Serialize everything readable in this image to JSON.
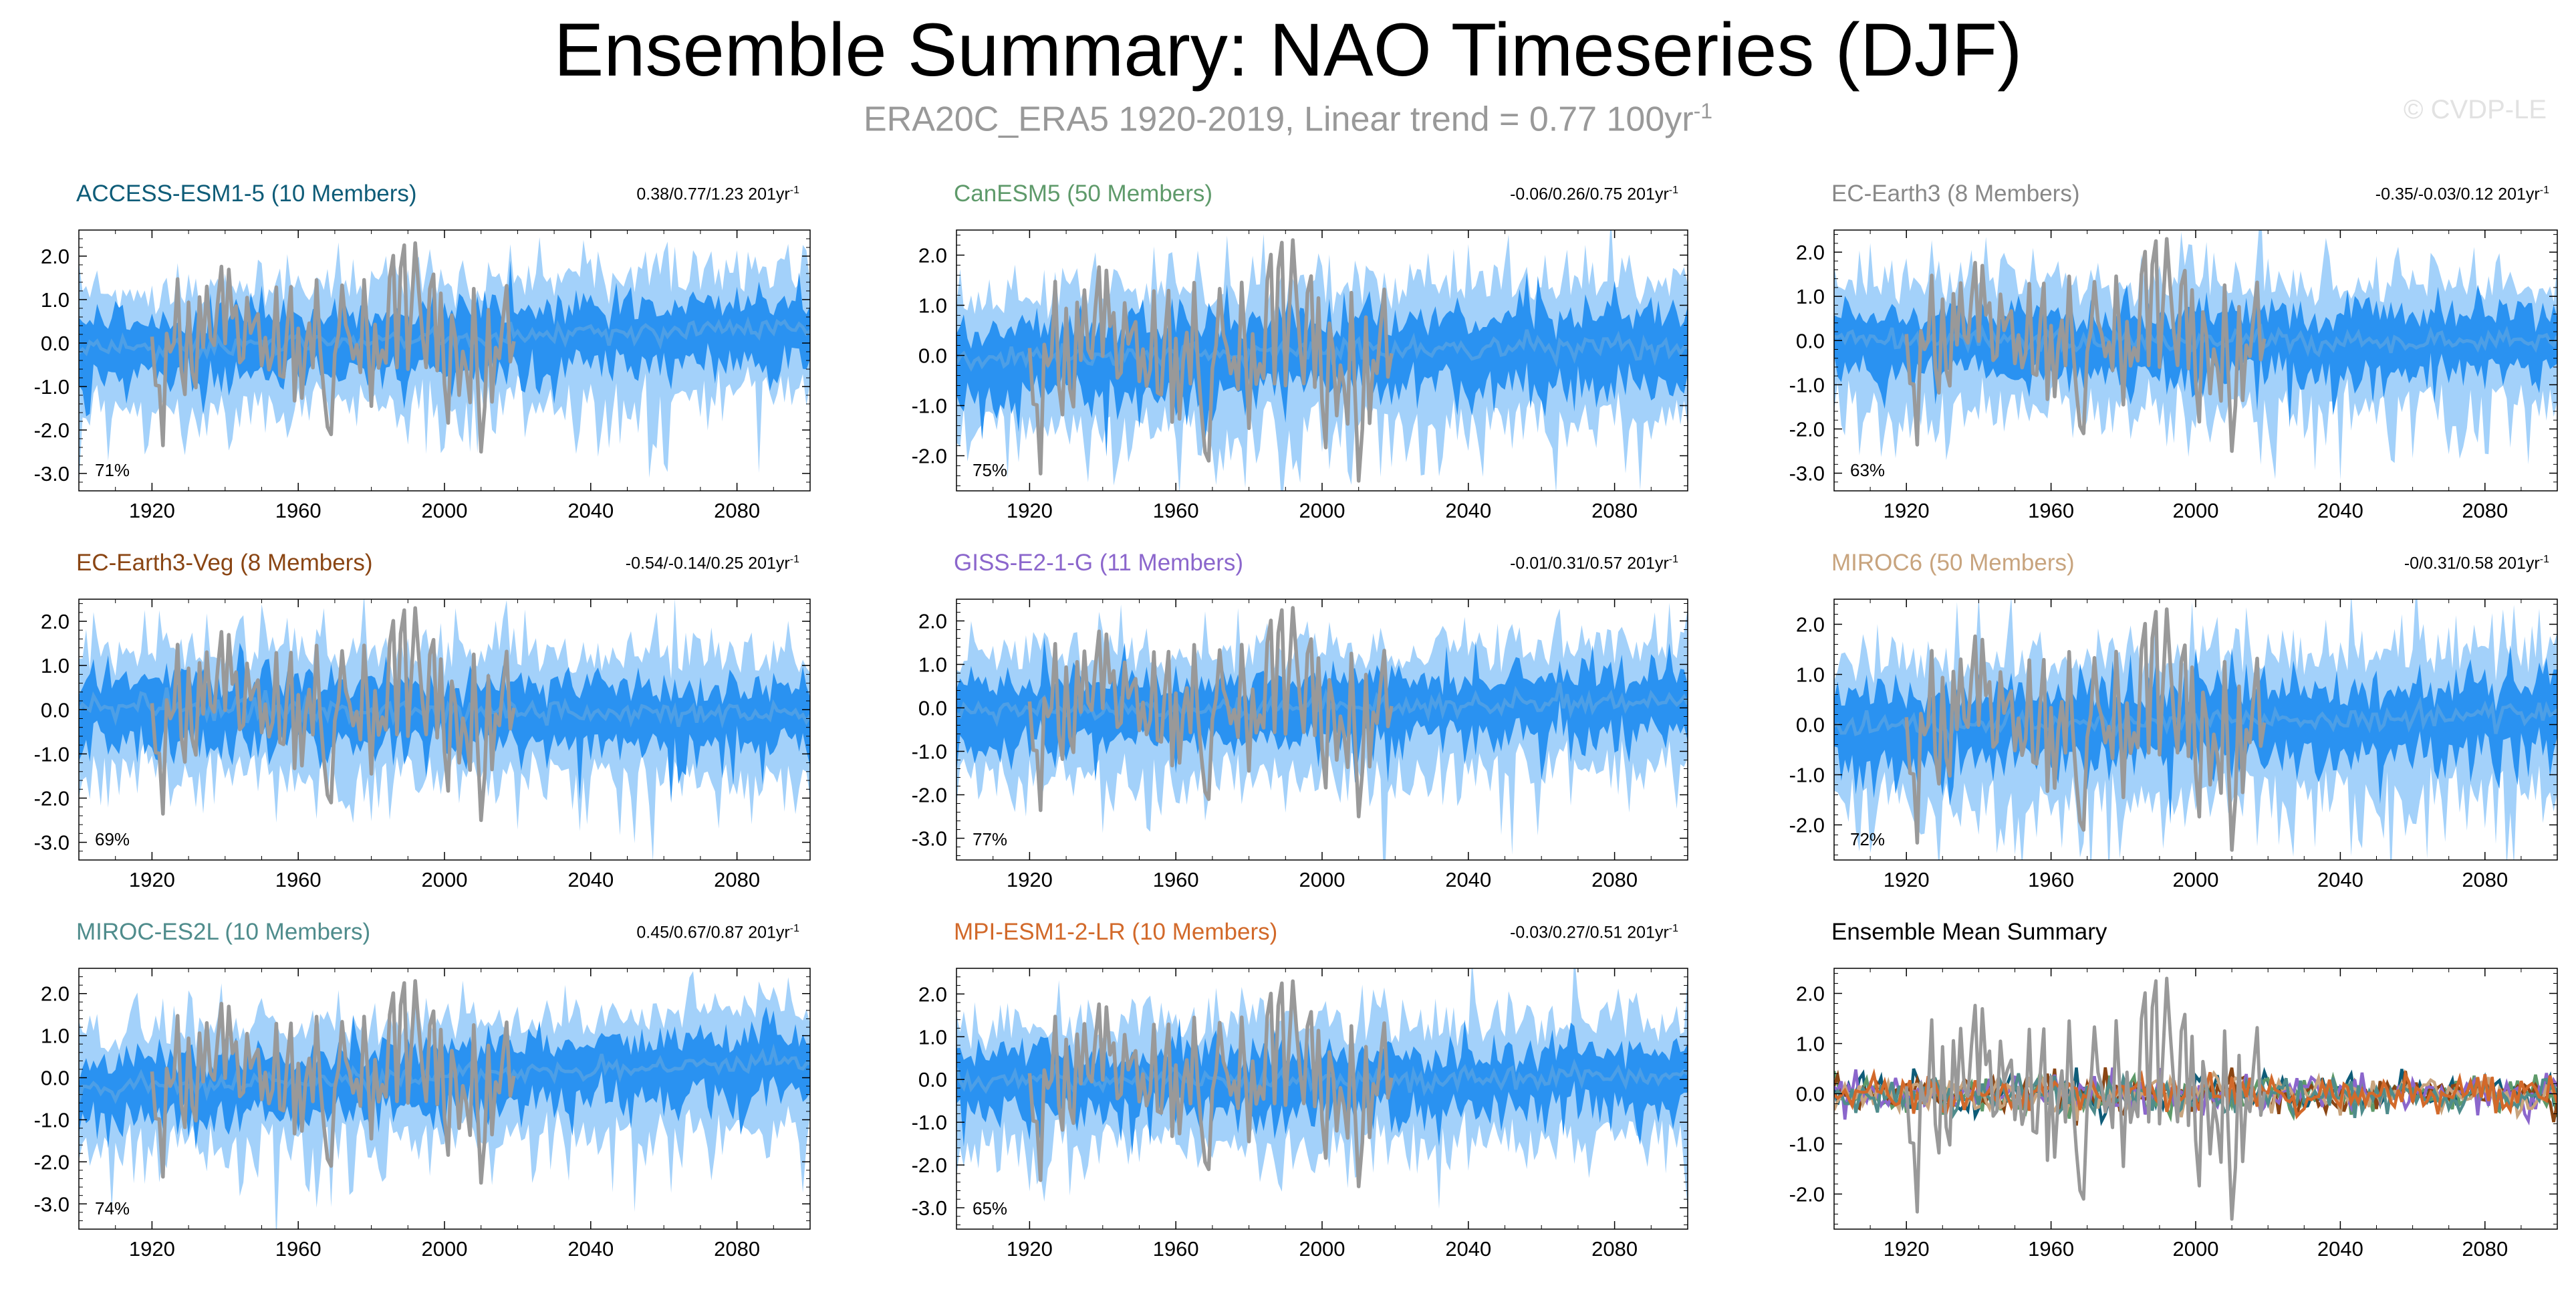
{
  "header": {
    "title": "Ensemble Summary: NAO Timeseries (DJF)",
    "subtitle_prefix": "ERA20C_ERA5 1920-2019, Linear trend = 0.77 100yr",
    "subtitle_exp": "-1",
    "watermark": "© CVDP-LE"
  },
  "colors": {
    "outer_band": "#a3d1fa",
    "inner_band": "#2a92f1",
    "ensemble_mean": "#4d9fe6",
    "observations": "#999999"
  },
  "chart_data": [
    {
      "type": "area",
      "title": "ACCESS-ESM1-5 (10 Members)",
      "title_color": "#0e5c78",
      "trend": "0.38/0.77/1.23 201yr",
      "trend_exp": "-1",
      "percent": "71%",
      "xlim": [
        1900,
        2100
      ],
      "ylim": [
        -3.4,
        2.6
      ],
      "yticks": [
        -3.0,
        -2.0,
        -1.0,
        0.0,
        1.0,
        2.0
      ],
      "ytick_labels": [
        "-3.0",
        "-2.0",
        "-1.0",
        "0.0",
        "1.0",
        "2.0"
      ],
      "xtick_labels": [
        "1920",
        "1960",
        "2000",
        "2040",
        "2080"
      ],
      "mean_trend": [
        -0.15,
        0.35
      ]
    },
    {
      "type": "area",
      "title": "CanESM5 (50 Members)",
      "title_color": "#5e9a6a",
      "trend": "-0.06/0.26/0.75 201yr",
      "trend_exp": "-1",
      "percent": "75%",
      "xlim": [
        1900,
        2100
      ],
      "ylim": [
        -2.7,
        2.5
      ],
      "yticks": [
        -2.0,
        -1.0,
        0.0,
        1.0,
        2.0
      ],
      "ytick_labels": [
        "-2.0",
        "-1.0",
        "0.0",
        "1.0",
        "2.0"
      ],
      "xtick_labels": [
        "1920",
        "1960",
        "2000",
        "2040",
        "2080"
      ],
      "mean_trend": [
        -0.05,
        0.2
      ]
    },
    {
      "type": "area",
      "title": "EC-Earth3 (8 Members)",
      "title_color": "#888888",
      "trend": "-0.35/-0.03/0.12 201yr",
      "trend_exp": "-1",
      "percent": "63%",
      "xlim": [
        1900,
        2100
      ],
      "ylim": [
        -3.4,
        2.5
      ],
      "yticks": [
        -3.0,
        -2.0,
        -1.0,
        0.0,
        1.0,
        2.0
      ],
      "ytick_labels": [
        "-3.0",
        "-2.0",
        "-1.0",
        "0.0",
        "1.0",
        "2.0"
      ],
      "xtick_labels": [
        "1920",
        "1960",
        "2000",
        "2040",
        "2080"
      ],
      "mean_trend": [
        0.0,
        0.0
      ]
    },
    {
      "type": "area",
      "title": "EC-Earth3-Veg (8 Members)",
      "title_color": "#8a4513",
      "trend": "-0.54/-0.14/0.25 201yr",
      "trend_exp": "-1",
      "percent": "69%",
      "xlim": [
        1900,
        2100
      ],
      "ylim": [
        -3.4,
        2.5
      ],
      "yticks": [
        -3.0,
        -2.0,
        -1.0,
        0.0,
        1.0,
        2.0
      ],
      "ytick_labels": [
        "-3.0",
        "-2.0",
        "-1.0",
        "0.0",
        "1.0",
        "2.0"
      ],
      "xtick_labels": [
        "1920",
        "1960",
        "2000",
        "2040",
        "2080"
      ],
      "mean_trend": [
        0.05,
        -0.1
      ]
    },
    {
      "type": "area",
      "title": "GISS-E2-1-G (11 Members)",
      "title_color": "#8b66cc",
      "trend": "-0.01/0.31/0.57 201yr",
      "trend_exp": "-1",
      "percent": "77%",
      "xlim": [
        1900,
        2100
      ],
      "ylim": [
        -3.5,
        2.5
      ],
      "yticks": [
        -3.0,
        -2.0,
        -1.0,
        0.0,
        1.0,
        2.0
      ],
      "ytick_labels": [
        "-3.0",
        "-2.0",
        "-1.0",
        "0.0",
        "1.0",
        "2.0"
      ],
      "xtick_labels": [
        "1920",
        "1960",
        "2000",
        "2040",
        "2080"
      ],
      "mean_trend": [
        -0.1,
        0.15
      ]
    },
    {
      "type": "area",
      "title": "MIROC6 (50 Members)",
      "title_color": "#c8a47e",
      "trend": "-0/0.31/0.58 201yr",
      "trend_exp": "-1",
      "percent": "72%",
      "xlim": [
        1900,
        2100
      ],
      "ylim": [
        -2.7,
        2.5
      ],
      "yticks": [
        -2.0,
        -1.0,
        0.0,
        1.0,
        2.0
      ],
      "ytick_labels": [
        "-2.0",
        "-1.0",
        "0.0",
        "1.0",
        "2.0"
      ],
      "xtick_labels": [
        "1920",
        "1960",
        "2000",
        "2040",
        "2080"
      ],
      "mean_trend": [
        -0.05,
        0.2
      ]
    },
    {
      "type": "area",
      "title": "MIROC-ES2L (10 Members)",
      "title_color": "#4f8c8c",
      "trend": "0.45/0.67/0.87 201yr",
      "trend_exp": "-1",
      "percent": "74%",
      "xlim": [
        1900,
        2100
      ],
      "ylim": [
        -3.6,
        2.6
      ],
      "yticks": [
        -3.0,
        -2.0,
        -1.0,
        0.0,
        1.0,
        2.0
      ],
      "ytick_labels": [
        "-3.0",
        "-2.0",
        "-1.0",
        "0.0",
        "1.0",
        "2.0"
      ],
      "xtick_labels": [
        "1920",
        "1960",
        "2000",
        "2040",
        "2080"
      ],
      "mean_trend": [
        -0.3,
        0.4
      ]
    },
    {
      "type": "area",
      "title": "MPI-ESM1-2-LR (10 Members)",
      "title_color": "#d2692a",
      "trend": "-0.03/0.27/0.51 201yr",
      "trend_exp": "-1",
      "percent": "65%",
      "xlim": [
        1900,
        2100
      ],
      "ylim": [
        -3.5,
        2.6
      ],
      "yticks": [
        -3.0,
        -2.0,
        -1.0,
        0.0,
        1.0,
        2.0
      ],
      "ytick_labels": [
        "-3.0",
        "-2.0",
        "-1.0",
        "0.0",
        "1.0",
        "2.0"
      ],
      "xtick_labels": [
        "1920",
        "1960",
        "2000",
        "2040",
        "2080"
      ],
      "mean_trend": [
        -0.05,
        0.1
      ]
    },
    {
      "type": "line",
      "title": "Ensemble Mean Summary",
      "title_color": "#000000",
      "xlim": [
        1900,
        2100
      ],
      "ylim": [
        -2.7,
        2.5
      ],
      "yticks": [
        -2.0,
        -1.0,
        0.0,
        1.0,
        2.0
      ],
      "ytick_labels": [
        "-2.0",
        "-1.0",
        "0.0",
        "1.0",
        "2.0"
      ],
      "xtick_labels": [
        "1920",
        "1960",
        "2000",
        "2040",
        "2080"
      ],
      "series_colors": [
        "#0e5c78",
        "#5e9a6a",
        "#888888",
        "#8a4513",
        "#8b66cc",
        "#c8a47e",
        "#4f8c8c",
        "#d2692a"
      ]
    }
  ]
}
